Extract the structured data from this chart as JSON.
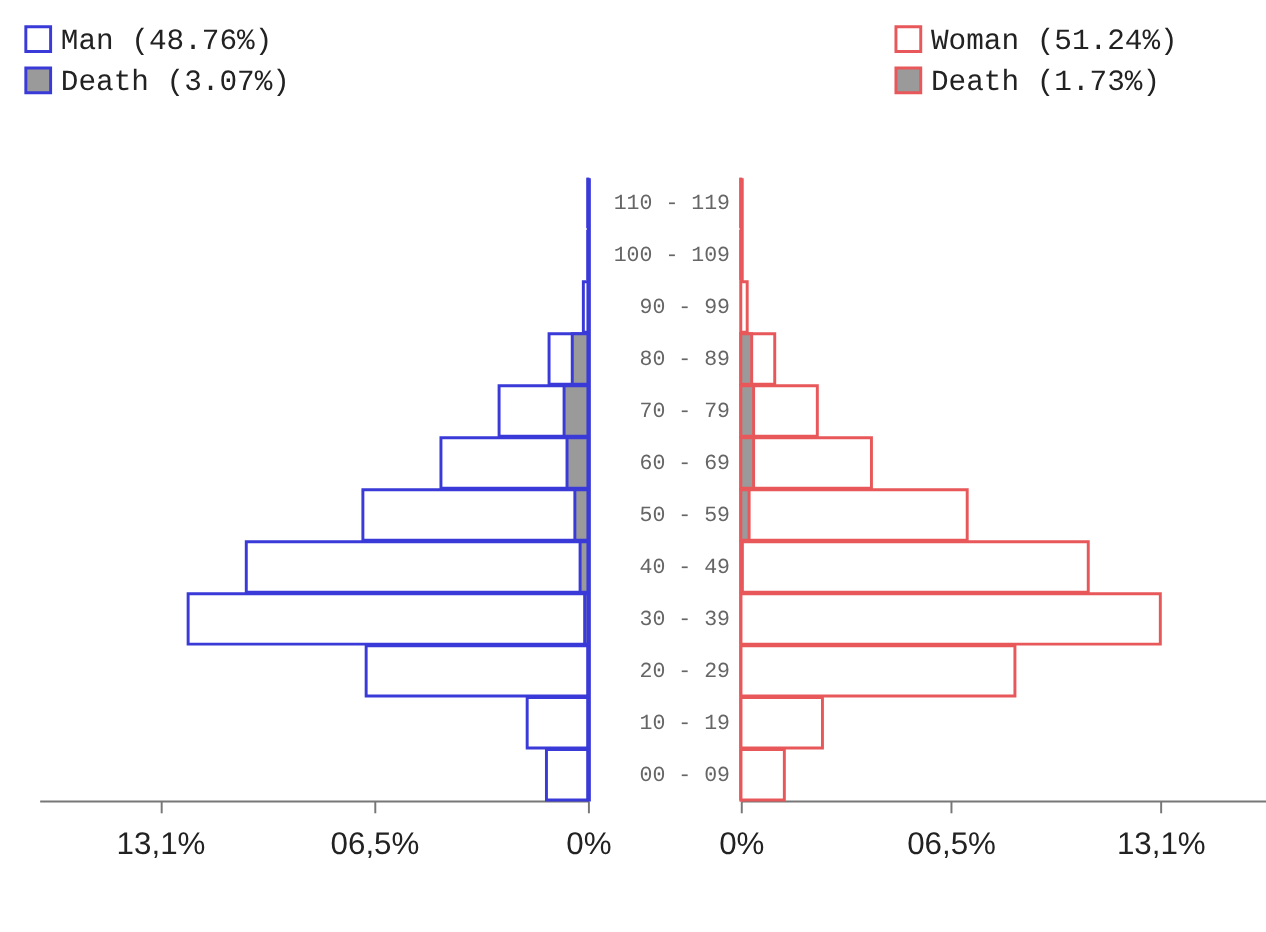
{
  "chart_data": [
    {
      "type": "bar",
      "orientation": "horizontal",
      "categories": [
        null,
        null,
        null,
        null,
        null,
        null,
        null,
        null,
        null,
        null,
        null,
        null
      ],
      "series": [
        {
          "name": "Man (48.76%)",
          "color": "#3a3ad8",
          "values": [
            0,
            0,
            0.14,
            1.19,
            2.72,
            4.5,
            6.89,
            10.46,
            12.24,
            6.79,
            1.86,
            1.27
          ]
        },
        {
          "name": "Death (3.07%)",
          "color": "#3a3ad8",
          "values": [
            0,
            0,
            null,
            0.48,
            0.73,
            0.64,
            0.4,
            0.24,
            0.1,
            0,
            0,
            0
          ]
        }
      ],
      "xlim": [
        16.8,
        0
      ],
      "xticks": [
        {
          "value": 13.1,
          "label": "13,1%"
        },
        {
          "value": 6.55,
          "label": "06,5%"
        },
        {
          "value": 0,
          "label": "0%"
        }
      ],
      "legend": "top left"
    },
    {
      "type": "bar",
      "orientation": "horizontal",
      "categories": [
        "110 - 119",
        "100 - 109",
        "90 - 99",
        "80 - 89",
        "70 - 79",
        "60 - 69",
        "50 - 59",
        "40 - 49",
        "30 - 39",
        "20 - 29",
        "10 - 19",
        "00 - 09"
      ],
      "series": [
        {
          "name": "Woman (51.24%)",
          "color": "#e8585a",
          "values": [
            0,
            0,
            0.2,
            1.06,
            2.39,
            4.08,
            7.07,
            10.85,
            13.1,
            8.56,
            2.55,
            1.36
          ]
        },
        {
          "name": "Death (1.73%)",
          "color": "#e8585a",
          "values": [
            0,
            0,
            null,
            0.34,
            0.4,
            0.4,
            0.26,
            0.05,
            0,
            0,
            0,
            0
          ]
        }
      ],
      "xlim": [
        0,
        16.4
      ],
      "xticks": [
        {
          "value": 0,
          "label": "0%"
        },
        {
          "value": 6.55,
          "label": "06,5%"
        },
        {
          "value": 13.1,
          "label": "13,1%"
        }
      ],
      "legend": "top right"
    }
  ]
}
